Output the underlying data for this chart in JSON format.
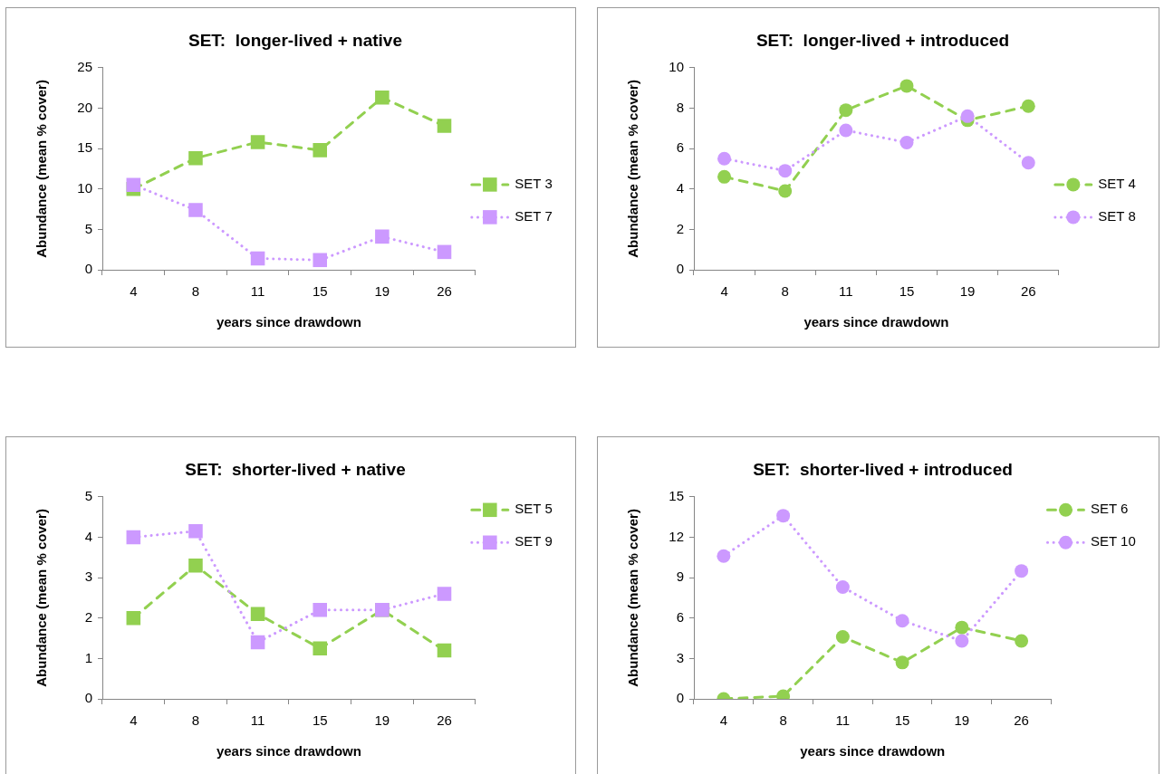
{
  "chart_data": [
    {
      "type": "line",
      "title": "SET:  longer-lived + native",
      "xlabel": "years since drawdown",
      "ylabel": "Abundance (mean % cover)",
      "categories": [
        "4",
        "8",
        "11",
        "15",
        "19",
        "26"
      ],
      "series": [
        {
          "name": "SET 3",
          "color": "#92d050",
          "line_style": "dashed",
          "values": [
            10.0,
            13.8,
            15.8,
            14.8,
            21.3,
            17.8
          ]
        },
        {
          "name": "SET 7",
          "color": "#cc99ff",
          "line_style": "dotted",
          "values": [
            10.5,
            7.4,
            1.4,
            1.2,
            4.1,
            2.2
          ]
        }
      ],
      "ylim": [
        0,
        25
      ],
      "yticks": [
        0,
        5,
        10,
        15,
        20,
        25
      ],
      "marker": "square",
      "legend": "right"
    },
    {
      "type": "line",
      "title": "SET:  longer-lived + introduced",
      "xlabel": "years since drawdown",
      "ylabel": "Abundance (mean % cover)",
      "categories": [
        "4",
        "8",
        "11",
        "15",
        "19",
        "26"
      ],
      "series": [
        {
          "name": "SET 4",
          "color": "#92d050",
          "line_style": "dashed",
          "values": [
            4.6,
            3.9,
            7.9,
            9.1,
            7.4,
            8.1
          ]
        },
        {
          "name": "SET 8",
          "color": "#cc99ff",
          "line_style": "dotted",
          "values": [
            5.5,
            4.9,
            6.9,
            6.3,
            7.6,
            5.3
          ]
        }
      ],
      "ylim": [
        0,
        10
      ],
      "yticks": [
        0,
        2,
        4,
        6,
        8,
        10
      ],
      "marker": "circle",
      "legend": "right"
    },
    {
      "type": "line",
      "title": "SET:  shorter-lived + native",
      "xlabel": "years since drawdown",
      "ylabel": "Abundance (mean % cover)",
      "categories": [
        "4",
        "8",
        "11",
        "15",
        "19",
        "26"
      ],
      "series": [
        {
          "name": "SET 5",
          "color": "#92d050",
          "line_style": "dashed",
          "values": [
            2.0,
            3.3,
            2.1,
            1.25,
            2.2,
            1.2
          ]
        },
        {
          "name": "SET 9",
          "color": "#cc99ff",
          "line_style": "dotted",
          "values": [
            4.0,
            4.15,
            1.4,
            2.2,
            2.2,
            2.6
          ]
        }
      ],
      "ylim": [
        0,
        5
      ],
      "yticks": [
        0,
        1,
        2,
        3,
        4,
        5
      ],
      "marker": "square",
      "legend": "top right"
    },
    {
      "type": "line",
      "title": "SET:  shorter-lived + introduced",
      "xlabel": "years since drawdown",
      "ylabel": "Abundance (mean % cover)",
      "categories": [
        "4",
        "8",
        "11",
        "15",
        "19",
        "26"
      ],
      "series": [
        {
          "name": "SET 6",
          "color": "#92d050",
          "line_style": "dashed",
          "values": [
            0,
            0.2,
            4.6,
            2.7,
            5.3,
            4.3
          ]
        },
        {
          "name": "SET 10",
          "color": "#cc99ff",
          "line_style": "dotted",
          "values": [
            10.6,
            13.6,
            8.3,
            5.8,
            4.3,
            9.5
          ]
        }
      ],
      "ylim": [
        0,
        15
      ],
      "yticks": [
        0,
        3,
        6,
        9,
        12,
        15
      ],
      "marker": "circle",
      "legend": "top right"
    }
  ]
}
